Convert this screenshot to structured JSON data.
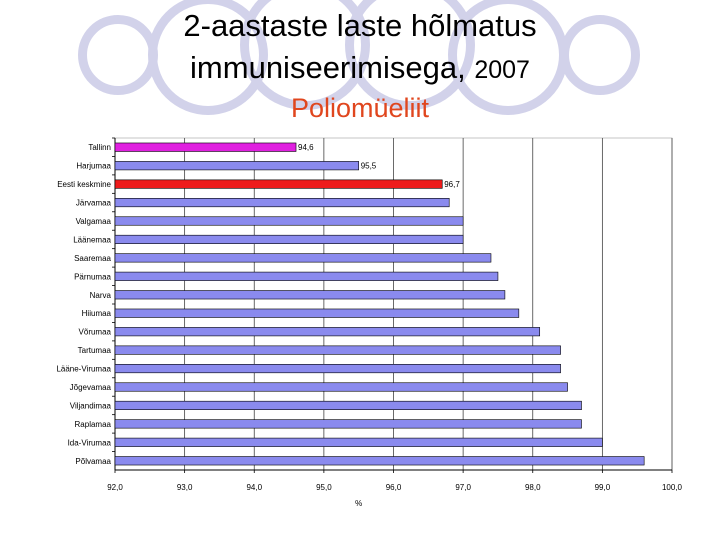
{
  "title": {
    "line1": "2-aastaste laste hõlmatus",
    "line2_text": "immuniseerimisega, ",
    "line2_year": "2007",
    "subtitle": "Poliomüeliit"
  },
  "chart_data": {
    "type": "bar",
    "orientation": "horizontal",
    "title": "2-aastaste laste hõlmatus immuniseerimisega, 2007 — Poliomüeliit",
    "xlabel": "%",
    "ylabel": "",
    "xlim": [
      92.0,
      100.0
    ],
    "x_ticks": [
      "92,0",
      "93,0",
      "94,0",
      "95,0",
      "96,0",
      "97,0",
      "98,0",
      "99,0",
      "100,0"
    ],
    "grid": true,
    "categories": [
      "Tallinn",
      "Harjumaa",
      "Eesti keskmine",
      "Järvamaa",
      "Valgamaa",
      "Läänemaa",
      "Saaremaa",
      "Pärnumaa",
      "Narva",
      "Hiiumaa",
      "Võrumaa",
      "Tartumaa",
      "Lääne-Virumaa",
      "Jõgevamaa",
      "Viljandimaa",
      "Raplamaa",
      "Ida-Virumaa",
      "Põlvamaa"
    ],
    "values": [
      94.6,
      95.5,
      96.7,
      96.8,
      97.0,
      97.0,
      97.4,
      97.5,
      97.6,
      97.8,
      98.1,
      98.4,
      98.4,
      98.5,
      98.7,
      98.7,
      99.0,
      99.6
    ],
    "value_labels": [
      "94,6",
      "95,5",
      "96,7",
      "",
      "",
      "",
      "",
      "",
      "",
      "",
      "",
      "",
      "",
      "",
      "",
      "",
      "",
      ""
    ],
    "bar_colors": [
      "#e020e0",
      "#8a8aee",
      "#ee1c1c",
      "#8a8aee",
      "#8a8aee",
      "#8a8aee",
      "#8a8aee",
      "#8a8aee",
      "#8a8aee",
      "#8a8aee",
      "#8a8aee",
      "#8a8aee",
      "#8a8aee",
      "#8a8aee",
      "#8a8aee",
      "#8a8aee",
      "#8a8aee",
      "#8a8aee"
    ]
  }
}
